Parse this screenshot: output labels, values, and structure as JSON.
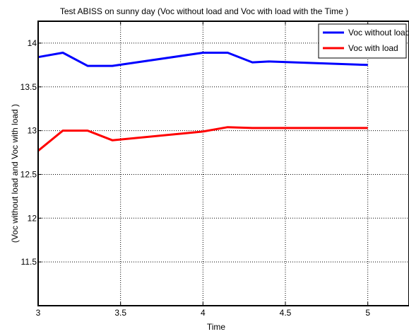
{
  "chart_data": {
    "type": "line",
    "title": "Test ABISS on sunny day (Voc without load and Voc with load with the Time )",
    "xlabel": "Time",
    "ylabel": "(Voc without load and Voc with load  )",
    "xlim": [
      3,
      5.25
    ],
    "ylim": [
      11,
      14.25
    ],
    "xticks": [
      3,
      3.5,
      4,
      4.5,
      5
    ],
    "xtick_labels": [
      "3",
      "3.5",
      "4",
      "4.5",
      "5"
    ],
    "yticks": [
      11.5,
      12,
      12.5,
      13,
      13.5,
      14
    ],
    "ytick_labels": [
      "11.5",
      "12",
      "12.5",
      "13",
      "13.5",
      "14"
    ],
    "grid": true,
    "legend_position": "top-right",
    "series": [
      {
        "name": "Voc without load",
        "color": "#0000ff",
        "x": [
          3,
          3.15,
          3.3,
          3.45,
          4,
          4.15,
          4.3,
          4.4,
          5
        ],
        "y": [
          13.84,
          13.89,
          13.74,
          13.74,
          13.89,
          13.89,
          13.78,
          13.79,
          13.75
        ]
      },
      {
        "name": "Voc with load",
        "color": "#ff0000",
        "x": [
          3,
          3.15,
          3.3,
          3.45,
          4,
          4.15,
          4.3,
          5
        ],
        "y": [
          12.77,
          13.0,
          13.0,
          12.89,
          12.99,
          13.04,
          13.03,
          13.03
        ]
      }
    ]
  }
}
